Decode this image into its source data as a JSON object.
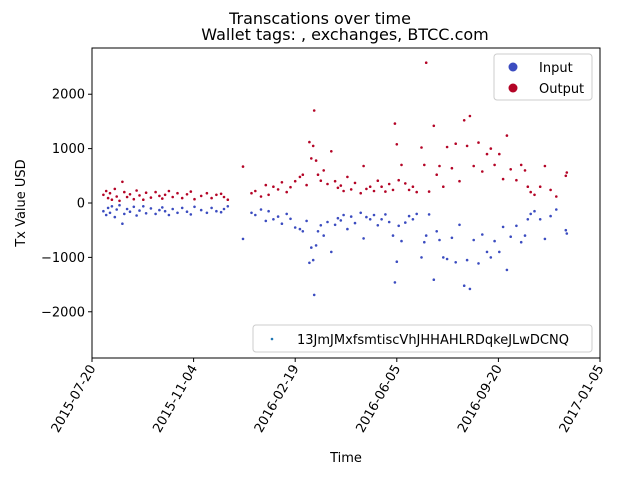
{
  "chart_data": {
    "type": "scatter",
    "suptitle": "Transcations over time",
    "title": "Wallet tags: , exchanges, BTCC.com",
    "xlabel": "Time",
    "ylabel": "Tx Value USD",
    "xlim": [
      "2015-07-20",
      "2017-01-05"
    ],
    "ylim": [
      -2850,
      2850
    ],
    "x_ticks": [
      "2015-07-20",
      "2015-11-04",
      "2016-02-19",
      "2016-06-05",
      "2016-09-20",
      "2017-01-05"
    ],
    "y_ticks": [
      -2000,
      -1000,
      0,
      1000,
      2000
    ],
    "y_tick_labels": [
      "−2000",
      "−1000",
      "0",
      "1000",
      "2000"
    ],
    "grid": false,
    "legend_top": {
      "placement": "top-right",
      "entries": [
        {
          "label": "Input",
          "color": "#3b4cc0"
        },
        {
          "label": "Output",
          "color": "#b40426"
        }
      ]
    },
    "legend_bottom": {
      "placement": "bottom-right",
      "entries": [
        {
          "label": "13JmJMxfsmtiscVhJHHAHLRDqkeJLwDCNQ",
          "color": "#1f77b4"
        }
      ]
    },
    "series": [
      {
        "name": "Output",
        "color": "#b40426",
        "points": [
          [
            "2015-08-01",
            150
          ],
          [
            "2015-08-04",
            220
          ],
          [
            "2015-08-06",
            90
          ],
          [
            "2015-08-08",
            180
          ],
          [
            "2015-08-10",
            60
          ],
          [
            "2015-08-13",
            260
          ],
          [
            "2015-08-15",
            120
          ],
          [
            "2015-08-18",
            40
          ],
          [
            "2015-08-21",
            390
          ],
          [
            "2015-08-23",
            200
          ],
          [
            "2015-08-26",
            110
          ],
          [
            "2015-08-29",
            160
          ],
          [
            "2015-09-02",
            70
          ],
          [
            "2015-09-05",
            230
          ],
          [
            "2015-09-08",
            140
          ],
          [
            "2015-09-12",
            60
          ],
          [
            "2015-09-15",
            190
          ],
          [
            "2015-09-20",
            100
          ],
          [
            "2015-09-25",
            200
          ],
          [
            "2015-09-29",
            130
          ],
          [
            "2015-10-02",
            80
          ],
          [
            "2015-10-05",
            150
          ],
          [
            "2015-10-09",
            220
          ],
          [
            "2015-10-13",
            110
          ],
          [
            "2015-10-18",
            180
          ],
          [
            "2015-10-23",
            90
          ],
          [
            "2015-10-28",
            160
          ],
          [
            "2015-11-01",
            210
          ],
          [
            "2015-11-05",
            70
          ],
          [
            "2015-11-12",
            130
          ],
          [
            "2015-11-18",
            180
          ],
          [
            "2015-11-23",
            90
          ],
          [
            "2015-11-28",
            150
          ],
          [
            "2015-12-03",
            170
          ],
          [
            "2015-12-06",
            110
          ],
          [
            "2015-12-10",
            60
          ],
          [
            "2015-12-26",
            670
          ],
          [
            "2016-01-04",
            180
          ],
          [
            "2016-01-08",
            220
          ],
          [
            "2016-01-14",
            120
          ],
          [
            "2016-01-19",
            330
          ],
          [
            "2016-01-22",
            150
          ],
          [
            "2016-01-27",
            300
          ],
          [
            "2016-02-01",
            250
          ],
          [
            "2016-02-05",
            380
          ],
          [
            "2016-02-10",
            200
          ],
          [
            "2016-02-14",
            290
          ],
          [
            "2016-02-19",
            400
          ],
          [
            "2016-02-24",
            480
          ],
          [
            "2016-02-27",
            520
          ],
          [
            "2016-03-02",
            330
          ],
          [
            "2016-03-05",
            1120
          ],
          [
            "2016-03-07",
            820
          ],
          [
            "2016-03-09",
            1050
          ],
          [
            "2016-03-10",
            1700
          ],
          [
            "2016-03-12",
            780
          ],
          [
            "2016-03-14",
            520
          ],
          [
            "2016-03-17",
            410
          ],
          [
            "2016-03-20",
            600
          ],
          [
            "2016-03-24",
            350
          ],
          [
            "2016-03-28",
            950
          ],
          [
            "2016-04-01",
            400
          ],
          [
            "2016-04-04",
            280
          ],
          [
            "2016-04-07",
            320
          ],
          [
            "2016-04-10",
            220
          ],
          [
            "2016-04-14",
            480
          ],
          [
            "2016-04-18",
            250
          ],
          [
            "2016-04-22",
            370
          ],
          [
            "2016-04-28",
            180
          ],
          [
            "2016-05-01",
            680
          ],
          [
            "2016-05-04",
            260
          ],
          [
            "2016-05-08",
            300
          ],
          [
            "2016-05-12",
            220
          ],
          [
            "2016-05-16",
            410
          ],
          [
            "2016-05-20",
            300
          ],
          [
            "2016-05-24",
            210
          ],
          [
            "2016-05-28",
            350
          ],
          [
            "2016-06-01",
            240
          ],
          [
            "2016-06-03",
            1460
          ],
          [
            "2016-06-05",
            1080
          ],
          [
            "2016-06-07",
            420
          ],
          [
            "2016-06-10",
            700
          ],
          [
            "2016-06-14",
            360
          ],
          [
            "2016-06-18",
            240
          ],
          [
            "2016-06-22",
            300
          ],
          [
            "2016-06-26",
            200
          ],
          [
            "2016-07-01",
            1020
          ],
          [
            "2016-07-04",
            700
          ],
          [
            "2016-07-06",
            2580
          ],
          [
            "2016-07-09",
            210
          ],
          [
            "2016-07-14",
            1420
          ],
          [
            "2016-07-17",
            520
          ],
          [
            "2016-07-20",
            680
          ],
          [
            "2016-07-24",
            300
          ],
          [
            "2016-07-28",
            1030
          ],
          [
            "2016-08-02",
            640
          ],
          [
            "2016-08-06",
            1090
          ],
          [
            "2016-08-10",
            400
          ],
          [
            "2016-08-15",
            1520
          ],
          [
            "2016-08-18",
            1050
          ],
          [
            "2016-08-21",
            1600
          ],
          [
            "2016-08-25",
            680
          ],
          [
            "2016-08-30",
            1110
          ],
          [
            "2016-09-03",
            580
          ],
          [
            "2016-09-08",
            900
          ],
          [
            "2016-09-12",
            1000
          ],
          [
            "2016-09-16",
            700
          ],
          [
            "2016-09-21",
            900
          ],
          [
            "2016-09-25",
            440
          ],
          [
            "2016-09-29",
            1240
          ],
          [
            "2016-10-03",
            620
          ],
          [
            "2016-10-09",
            420
          ],
          [
            "2016-10-14",
            700
          ],
          [
            "2016-10-18",
            600
          ],
          [
            "2016-10-21",
            300
          ],
          [
            "2016-10-24",
            200
          ],
          [
            "2016-10-28",
            150
          ],
          [
            "2016-11-03",
            300
          ],
          [
            "2016-11-08",
            680
          ],
          [
            "2016-11-14",
            240
          ],
          [
            "2016-11-20",
            120
          ],
          [
            "2016-11-30",
            500
          ],
          [
            "2016-12-01",
            560
          ]
        ]
      },
      {
        "name": "Input",
        "color": "#3b4cc0",
        "points": [
          [
            "2015-08-01",
            -150
          ],
          [
            "2015-08-04",
            -220
          ],
          [
            "2015-08-06",
            -90
          ],
          [
            "2015-08-08",
            -180
          ],
          [
            "2015-08-10",
            -60
          ],
          [
            "2015-08-13",
            -260
          ],
          [
            "2015-08-15",
            -120
          ],
          [
            "2015-08-18",
            -40
          ],
          [
            "2015-08-21",
            -380
          ],
          [
            "2015-08-23",
            -200
          ],
          [
            "2015-08-26",
            -110
          ],
          [
            "2015-08-29",
            -160
          ],
          [
            "2015-09-02",
            -70
          ],
          [
            "2015-09-05",
            -230
          ],
          [
            "2015-09-08",
            -140
          ],
          [
            "2015-09-12",
            -60
          ],
          [
            "2015-09-15",
            -190
          ],
          [
            "2015-09-20",
            -100
          ],
          [
            "2015-09-25",
            -200
          ],
          [
            "2015-09-29",
            -130
          ],
          [
            "2015-10-02",
            -80
          ],
          [
            "2015-10-05",
            -150
          ],
          [
            "2015-10-09",
            -220
          ],
          [
            "2015-10-13",
            -110
          ],
          [
            "2015-10-18",
            -180
          ],
          [
            "2015-10-23",
            -90
          ],
          [
            "2015-10-28",
            -160
          ],
          [
            "2015-11-01",
            -210
          ],
          [
            "2015-11-05",
            -70
          ],
          [
            "2015-11-12",
            -130
          ],
          [
            "2015-11-18",
            -180
          ],
          [
            "2015-11-23",
            -90
          ],
          [
            "2015-11-28",
            -150
          ],
          [
            "2015-12-03",
            -170
          ],
          [
            "2015-12-06",
            -110
          ],
          [
            "2015-12-10",
            -60
          ],
          [
            "2015-12-26",
            -660
          ],
          [
            "2016-01-04",
            -180
          ],
          [
            "2016-01-08",
            -220
          ],
          [
            "2016-01-14",
            -120
          ],
          [
            "2016-01-19",
            -330
          ],
          [
            "2016-01-22",
            -150
          ],
          [
            "2016-01-27",
            -300
          ],
          [
            "2016-02-01",
            -250
          ],
          [
            "2016-02-05",
            -380
          ],
          [
            "2016-02-10",
            -200
          ],
          [
            "2016-02-14",
            -290
          ],
          [
            "2016-02-19",
            -450
          ],
          [
            "2016-02-24",
            -480
          ],
          [
            "2016-02-27",
            -520
          ],
          [
            "2016-03-02",
            -330
          ],
          [
            "2016-03-05",
            -1100
          ],
          [
            "2016-03-07",
            -820
          ],
          [
            "2016-03-09",
            -1050
          ],
          [
            "2016-03-10",
            -1690
          ],
          [
            "2016-03-12",
            -780
          ],
          [
            "2016-03-14",
            -520
          ],
          [
            "2016-03-17",
            -410
          ],
          [
            "2016-03-20",
            -600
          ],
          [
            "2016-03-24",
            -350
          ],
          [
            "2016-03-28",
            -900
          ],
          [
            "2016-04-01",
            -400
          ],
          [
            "2016-04-04",
            -280
          ],
          [
            "2016-04-07",
            -320
          ],
          [
            "2016-04-10",
            -220
          ],
          [
            "2016-04-14",
            -480
          ],
          [
            "2016-04-18",
            -250
          ],
          [
            "2016-04-22",
            -370
          ],
          [
            "2016-04-28",
            -180
          ],
          [
            "2016-05-01",
            -650
          ],
          [
            "2016-05-04",
            -260
          ],
          [
            "2016-05-08",
            -300
          ],
          [
            "2016-05-12",
            -220
          ],
          [
            "2016-05-16",
            -410
          ],
          [
            "2016-05-20",
            -300
          ],
          [
            "2016-05-24",
            -210
          ],
          [
            "2016-05-28",
            -350
          ],
          [
            "2016-06-01",
            -600
          ],
          [
            "2016-06-03",
            -1460
          ],
          [
            "2016-06-05",
            -1080
          ],
          [
            "2016-06-07",
            -420
          ],
          [
            "2016-06-10",
            -700
          ],
          [
            "2016-06-14",
            -360
          ],
          [
            "2016-06-18",
            -240
          ],
          [
            "2016-06-22",
            -300
          ],
          [
            "2016-06-26",
            -200
          ],
          [
            "2016-07-01",
            -1000
          ],
          [
            "2016-07-04",
            -720
          ],
          [
            "2016-07-06",
            -600
          ],
          [
            "2016-07-09",
            -210
          ],
          [
            "2016-07-14",
            -1410
          ],
          [
            "2016-07-17",
            -520
          ],
          [
            "2016-07-20",
            -680
          ],
          [
            "2016-07-24",
            -1000
          ],
          [
            "2016-07-28",
            -1030
          ],
          [
            "2016-08-02",
            -640
          ],
          [
            "2016-08-06",
            -1090
          ],
          [
            "2016-08-10",
            -400
          ],
          [
            "2016-08-15",
            -1520
          ],
          [
            "2016-08-18",
            -1050
          ],
          [
            "2016-08-21",
            -1580
          ],
          [
            "2016-08-25",
            -680
          ],
          [
            "2016-08-30",
            -1110
          ],
          [
            "2016-09-03",
            -580
          ],
          [
            "2016-09-08",
            -900
          ],
          [
            "2016-09-12",
            -1000
          ],
          [
            "2016-09-16",
            -700
          ],
          [
            "2016-09-21",
            -900
          ],
          [
            "2016-09-25",
            -440
          ],
          [
            "2016-09-29",
            -1230
          ],
          [
            "2016-10-03",
            -620
          ],
          [
            "2016-10-09",
            -420
          ],
          [
            "2016-10-14",
            -720
          ],
          [
            "2016-10-18",
            -600
          ],
          [
            "2016-10-21",
            -300
          ],
          [
            "2016-10-24",
            -200
          ],
          [
            "2016-10-28",
            -150
          ],
          [
            "2016-11-03",
            -300
          ],
          [
            "2016-11-08",
            -660
          ],
          [
            "2016-11-14",
            -240
          ],
          [
            "2016-11-20",
            -120
          ],
          [
            "2016-11-30",
            -500
          ],
          [
            "2016-12-01",
            -560
          ]
        ]
      }
    ]
  }
}
